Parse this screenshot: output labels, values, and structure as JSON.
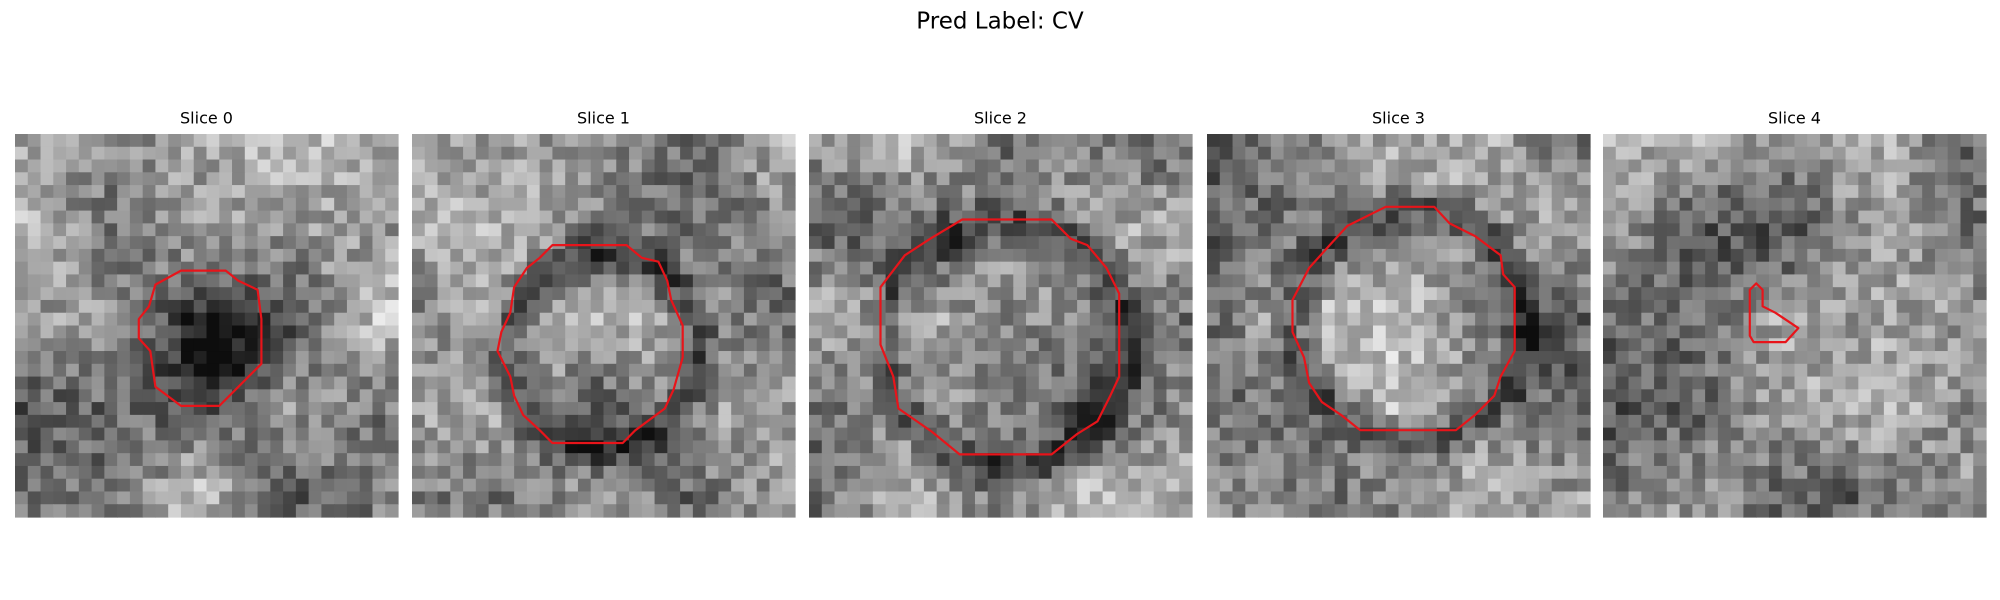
{
  "title": "Pred Label: CV",
  "panels": [
    {
      "title": "Slice 0"
    },
    {
      "title": "Slice 1"
    },
    {
      "title": "Slice 2"
    },
    {
      "title": "Slice 3"
    },
    {
      "title": "Slice 4"
    }
  ]
}
